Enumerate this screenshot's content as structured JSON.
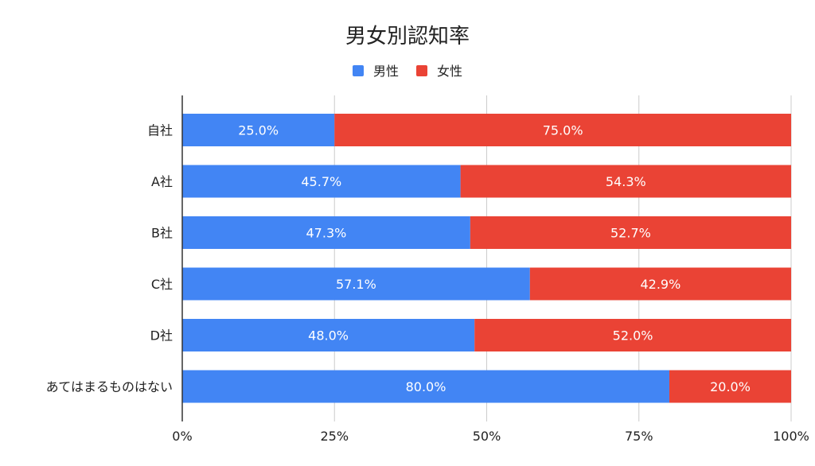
{
  "chart_data": {
    "type": "bar",
    "orientation": "horizontal",
    "stacked": "percent",
    "title": "男女別認知率",
    "legend": {
      "position": "top-center"
    },
    "categories": [
      "自社",
      "A社",
      "B社",
      "C社",
      "D社",
      "あてはまるものはない"
    ],
    "series": [
      {
        "name": "男性",
        "color": "#4285f4",
        "values": [
          25.0,
          45.7,
          47.3,
          57.1,
          48.0,
          80.0
        ],
        "labels": [
          "25.0%",
          "45.7%",
          "47.3%",
          "57.1%",
          "48.0%",
          "80.0%"
        ]
      },
      {
        "name": "女性",
        "color": "#ea4335",
        "values": [
          75.0,
          54.3,
          52.7,
          42.9,
          52.0,
          20.0
        ],
        "labels": [
          "75.0%",
          "54.3%",
          "52.7%",
          "42.9%",
          "52.0%",
          "20.0%"
        ]
      }
    ],
    "xlim": [
      0,
      100
    ],
    "x_ticks": [
      0,
      25,
      50,
      75,
      100
    ],
    "x_tick_labels": [
      "0%",
      "25%",
      "50%",
      "75%",
      "100%"
    ],
    "grid": true,
    "colors": {
      "grid": "#cccccc",
      "axis": "#333333",
      "text": "#222222",
      "label": "#ffffff"
    }
  }
}
